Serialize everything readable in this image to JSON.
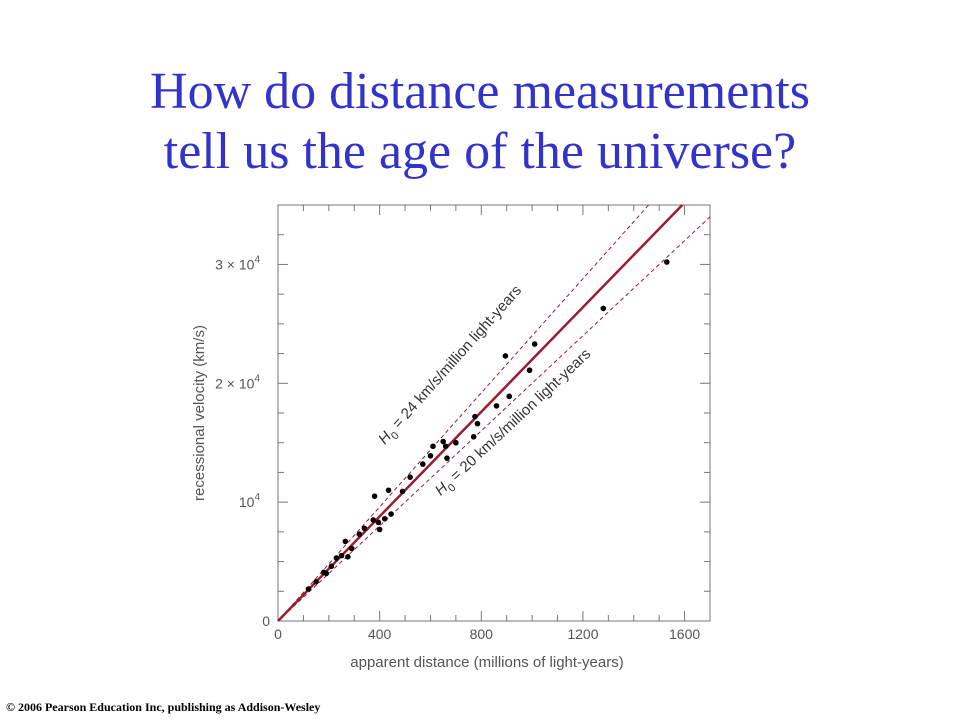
{
  "title": {
    "line1": "How do distance measurements",
    "line2": "tell us the age of the universe?"
  },
  "copyright": "© 2006 Pearson Education Inc, publishing as Addison-Wesley",
  "colors": {
    "title": "#3333cc",
    "fit_line": "#9b1b30",
    "points": "#000000",
    "axes": "#777777"
  },
  "chart_data": {
    "type": "scatter",
    "xlabel": "apparent distance (millions of light-years)",
    "ylabel": "recessional velocity (km/s)",
    "xlim": [
      0,
      1700
    ],
    "ylim": [
      0,
      35000
    ],
    "x_ticks": [
      {
        "value": 0,
        "label": "0"
      },
      {
        "value": 400,
        "label": "400"
      },
      {
        "value": 800,
        "label": "800"
      },
      {
        "value": 1200,
        "label": "1200"
      },
      {
        "value": 1600,
        "label": "1600"
      }
    ],
    "y_ticks": [
      {
        "value": 0,
        "label": "0",
        "mantissa": "",
        "exponent": ""
      },
      {
        "value": 10000,
        "label": "10",
        "mantissa": "",
        "exponent": "4"
      },
      {
        "value": 20000,
        "label": "2 × 10",
        "mantissa": "2 × ",
        "exponent": "4"
      },
      {
        "value": 30000,
        "label": "3 × 10",
        "mantissa": "3 × ",
        "exponent": "4"
      }
    ],
    "grid": false,
    "fit_lines": [
      {
        "label_prefix": "H",
        "label_sub": "0",
        "label_rest": " = 24 km/s/million light-years",
        "slope": 24,
        "style": "dashed"
      },
      {
        "label_prefix": "",
        "label_sub": "",
        "label_rest": "",
        "slope": 22,
        "style": "solid"
      },
      {
        "label_prefix": "H",
        "label_sub": "0",
        "label_rest": " = 20 km/s/million light-years",
        "slope": 20,
        "style": "dashed"
      }
    ],
    "points": [
      {
        "x": 120,
        "y": 2700
      },
      {
        "x": 150,
        "y": 3300
      },
      {
        "x": 180,
        "y": 4100
      },
      {
        "x": 190,
        "y": 4000
      },
      {
        "x": 210,
        "y": 4600
      },
      {
        "x": 230,
        "y": 5300
      },
      {
        "x": 250,
        "y": 5500
      },
      {
        "x": 265,
        "y": 6700
      },
      {
        "x": 275,
        "y": 5400
      },
      {
        "x": 290,
        "y": 6100
      },
      {
        "x": 320,
        "y": 7300
      },
      {
        "x": 340,
        "y": 7800
      },
      {
        "x": 375,
        "y": 8500
      },
      {
        "x": 380,
        "y": 10500
      },
      {
        "x": 395,
        "y": 8300
      },
      {
        "x": 400,
        "y": 7700
      },
      {
        "x": 420,
        "y": 8600
      },
      {
        "x": 435,
        "y": 11000
      },
      {
        "x": 445,
        "y": 9000
      },
      {
        "x": 490,
        "y": 10900
      },
      {
        "x": 520,
        "y": 12100
      },
      {
        "x": 570,
        "y": 13200
      },
      {
        "x": 600,
        "y": 13900
      },
      {
        "x": 610,
        "y": 14700
      },
      {
        "x": 650,
        "y": 15100
      },
      {
        "x": 660,
        "y": 14700
      },
      {
        "x": 665,
        "y": 13700
      },
      {
        "x": 700,
        "y": 15000
      },
      {
        "x": 770,
        "y": 15500
      },
      {
        "x": 775,
        "y": 17200
      },
      {
        "x": 785,
        "y": 16600
      },
      {
        "x": 860,
        "y": 18100
      },
      {
        "x": 895,
        "y": 22300
      },
      {
        "x": 910,
        "y": 18900
      },
      {
        "x": 990,
        "y": 21100
      },
      {
        "x": 1010,
        "y": 23300
      },
      {
        "x": 1280,
        "y": 26300
      },
      {
        "x": 1530,
        "y": 30200
      }
    ]
  }
}
